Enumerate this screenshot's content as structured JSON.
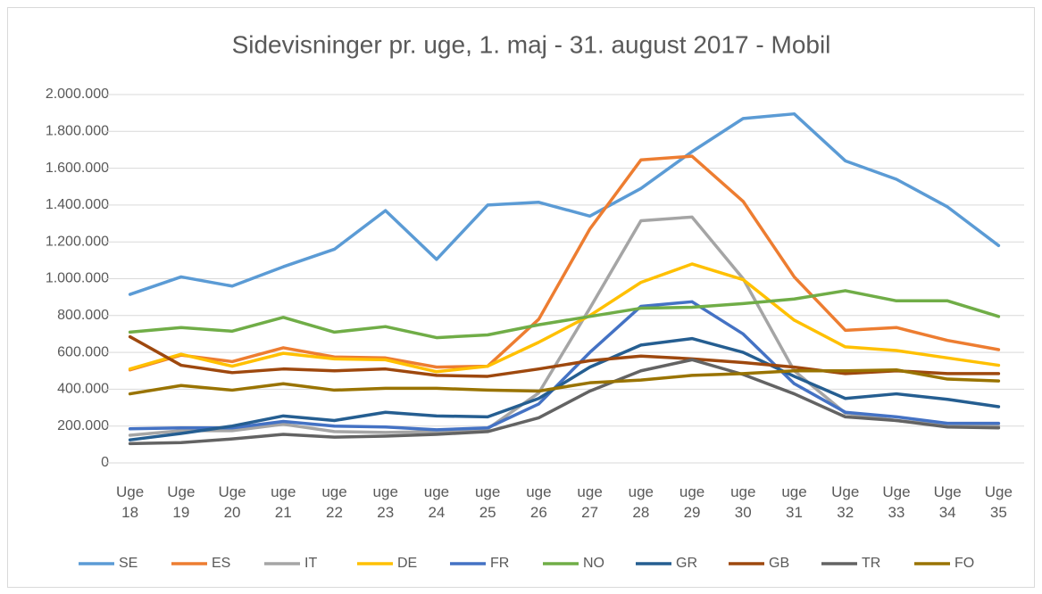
{
  "chart_data": {
    "type": "line",
    "title": "Sidevisninger pr. uge, 1. maj - 31. august 2017 - Mobil",
    "categories": [
      "Uge 18",
      "Uge 19",
      "Uge 20",
      "uge 21",
      "uge 22",
      "uge 23",
      "uge 24",
      "uge 25",
      "uge 26",
      "uge 27",
      "uge 28",
      "uge 29",
      "uge 30",
      "uge 31",
      "Uge 32",
      "Uge 33",
      "Uge 34",
      "Uge 35"
    ],
    "ylim": [
      0,
      2000000
    ],
    "yticks": [
      0,
      {
        "value": 200000,
        "label": "200.000"
      },
      {
        "value": 400000,
        "label": "400.000"
      },
      {
        "value": 600000,
        "label": "600.000"
      },
      {
        "value": 800000,
        "label": "800.000"
      },
      {
        "value": 1000000,
        "label": "1.000.000"
      },
      {
        "value": 1200000,
        "label": "1.200.000"
      },
      {
        "value": 1400000,
        "label": "1.400.000"
      },
      {
        "value": 1600000,
        "label": "1.600.000"
      },
      {
        "value": 1800000,
        "label": "1.800.000"
      },
      {
        "value": 2000000,
        "label": "2.000.000"
      }
    ],
    "grid": true,
    "legend": "bottom",
    "series": [
      {
        "name": "SE",
        "color": "#5b9bd5",
        "values": [
          915000,
          1010000,
          960000,
          1065000,
          1160000,
          1370000,
          1105000,
          1400000,
          1415000,
          1340000,
          1490000,
          1690000,
          1870000,
          1895000,
          1640000,
          1540000,
          1390000,
          1180000
        ]
      },
      {
        "name": "ES",
        "color": "#ed7d31",
        "values": [
          505000,
          585000,
          550000,
          625000,
          575000,
          570000,
          520000,
          525000,
          780000,
          1270000,
          1645000,
          1665000,
          1420000,
          1010000,
          720000,
          735000,
          665000,
          615000
        ]
      },
      {
        "name": "IT",
        "color": "#a5a5a5",
        "values": [
          150000,
          175000,
          175000,
          210000,
          170000,
          165000,
          170000,
          185000,
          380000,
          840000,
          1315000,
          1335000,
          1000000,
          500000,
          270000,
          230000,
          205000,
          200000
        ]
      },
      {
        "name": "DE",
        "color": "#ffc000",
        "values": [
          510000,
          590000,
          525000,
          595000,
          565000,
          560000,
          495000,
          525000,
          655000,
          800000,
          980000,
          1080000,
          995000,
          775000,
          630000,
          610000,
          570000,
          530000
        ]
      },
      {
        "name": "FR",
        "color": "#4472c4",
        "values": [
          185000,
          190000,
          190000,
          225000,
          200000,
          195000,
          180000,
          190000,
          320000,
          600000,
          850000,
          875000,
          700000,
          430000,
          275000,
          250000,
          215000,
          215000
        ]
      },
      {
        "name": "NO",
        "color": "#70ad47",
        "values": [
          710000,
          735000,
          715000,
          790000,
          710000,
          740000,
          680000,
          695000,
          750000,
          795000,
          840000,
          845000,
          865000,
          890000,
          935000,
          880000,
          880000,
          795000
        ]
      },
      {
        "name": "GR",
        "color": "#255e91",
        "values": [
          125000,
          160000,
          200000,
          255000,
          230000,
          275000,
          255000,
          250000,
          350000,
          520000,
          640000,
          675000,
          600000,
          470000,
          350000,
          375000,
          345000,
          305000
        ]
      },
      {
        "name": "GB",
        "color": "#9e480e",
        "values": [
          685000,
          530000,
          490000,
          510000,
          500000,
          510000,
          475000,
          470000,
          510000,
          555000,
          580000,
          565000,
          545000,
          520000,
          485000,
          500000,
          485000,
          485000
        ]
      },
      {
        "name": "TR",
        "color": "#636363",
        "values": [
          105000,
          110000,
          130000,
          155000,
          140000,
          145000,
          155000,
          170000,
          245000,
          390000,
          500000,
          560000,
          480000,
          375000,
          250000,
          230000,
          195000,
          190000
        ]
      },
      {
        "name": "FO",
        "color": "#997300",
        "values": [
          375000,
          420000,
          395000,
          430000,
          395000,
          405000,
          405000,
          395000,
          390000,
          435000,
          450000,
          475000,
          485000,
          500000,
          500000,
          505000,
          455000,
          445000
        ]
      }
    ]
  }
}
